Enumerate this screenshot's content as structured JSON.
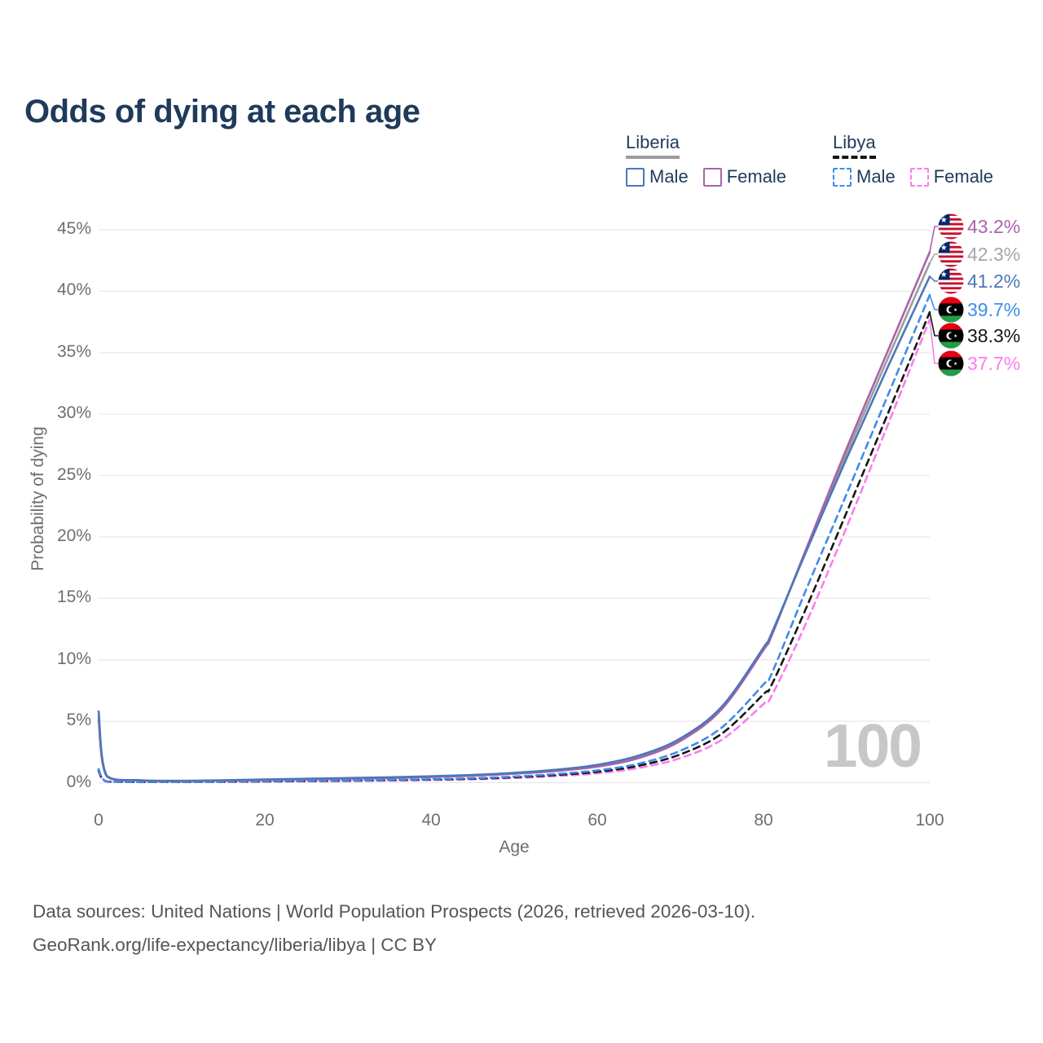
{
  "title": "Odds of dying at each age",
  "watermark": "100",
  "legend": {
    "groups": [
      {
        "title": "Liberia",
        "style": "solid",
        "underline_color": "#9c9c9c",
        "items": [
          {
            "label": "Male",
            "color": "#4a78b8"
          },
          {
            "label": "Female",
            "color": "#aa62a8"
          }
        ]
      },
      {
        "title": "Libya",
        "style": "dashed",
        "underline_color": "#161616",
        "items": [
          {
            "label": "Male",
            "color": "#3f8ceb"
          },
          {
            "label": "Female",
            "color": "#fb7cec"
          }
        ]
      }
    ]
  },
  "footer": {
    "line1": "Data sources: United Nations | World Population Prospects (2026, retrieved 2026-03-10).",
    "line2": "GeoRank.org/life-expectancy/liberia/libya | CC BY"
  },
  "chart_data": {
    "type": "line",
    "title": "Odds of dying at each age",
    "xlabel": "Age",
    "ylabel": "Probability of dying",
    "xlim": [
      0,
      100
    ],
    "ylim": [
      0,
      45
    ],
    "xticks": [
      0,
      20,
      40,
      60,
      80,
      100
    ],
    "yticks": [
      0,
      5,
      10,
      15,
      20,
      25,
      30,
      35,
      40,
      45
    ],
    "ytick_suffix": "%",
    "grid": "horizontal",
    "legend_position": "top-right",
    "ages": [
      0,
      1,
      5,
      10,
      15,
      20,
      25,
      30,
      35,
      40,
      45,
      50,
      55,
      60,
      65,
      70,
      75,
      80,
      81,
      85,
      90,
      95,
      100
    ],
    "series": [
      {
        "id": "liberia-female",
        "country": "Liberia",
        "sex": "Female",
        "color": "#aa62a8",
        "dash": false,
        "values": [
          5.1,
          0.5,
          0.18,
          0.13,
          0.17,
          0.22,
          0.27,
          0.32,
          0.38,
          0.46,
          0.56,
          0.72,
          0.95,
          1.3,
          2.0,
          3.4,
          6.0,
          10.8,
          12.0,
          18.8,
          27.2,
          35.2,
          43.2
        ],
        "end_label": "43.2%"
      },
      {
        "id": "liberia-total",
        "country": "Liberia",
        "sex": "Both",
        "color": "#9c9c9c",
        "dash": false,
        "values": [
          5.45,
          0.52,
          0.19,
          0.14,
          0.18,
          0.24,
          0.3,
          0.35,
          0.41,
          0.49,
          0.6,
          0.76,
          1.0,
          1.37,
          2.1,
          3.5,
          6.1,
          10.9,
          12.1,
          18.7,
          26.8,
          34.6,
          42.3
        ],
        "end_label": "42.3%"
      },
      {
        "id": "liberia-male",
        "country": "Liberia",
        "sex": "Male",
        "color": "#4a78b8",
        "dash": false,
        "values": [
          5.8,
          0.55,
          0.2,
          0.15,
          0.2,
          0.26,
          0.32,
          0.38,
          0.44,
          0.52,
          0.63,
          0.8,
          1.05,
          1.45,
          2.2,
          3.6,
          6.2,
          11.0,
          12.2,
          18.6,
          26.4,
          33.9,
          41.2
        ],
        "end_label": "41.2%"
      },
      {
        "id": "libya-male",
        "country": "Libya",
        "sex": "Male",
        "color": "#3f8ceb",
        "dash": true,
        "values": [
          1.1,
          0.1,
          0.05,
          0.05,
          0.08,
          0.12,
          0.15,
          0.18,
          0.22,
          0.28,
          0.36,
          0.5,
          0.7,
          1.0,
          1.55,
          2.6,
          4.5,
          8.0,
          8.9,
          15.5,
          23.5,
          31.6,
          39.7
        ],
        "end_label": "39.7%"
      },
      {
        "id": "libya-total",
        "country": "Libya",
        "sex": "Both",
        "color": "#161616",
        "dash": true,
        "values": [
          1.0,
          0.09,
          0.05,
          0.05,
          0.07,
          0.1,
          0.13,
          0.16,
          0.2,
          0.25,
          0.32,
          0.44,
          0.62,
          0.88,
          1.38,
          2.3,
          4.0,
          7.2,
          8.0,
          14.0,
          22.0,
          30.1,
          38.3
        ],
        "end_label": "38.3%"
      },
      {
        "id": "libya-female",
        "country": "Libya",
        "sex": "Female",
        "color": "#fb7cec",
        "dash": true,
        "values": [
          0.9,
          0.08,
          0.04,
          0.04,
          0.06,
          0.08,
          0.11,
          0.14,
          0.17,
          0.21,
          0.28,
          0.38,
          0.54,
          0.76,
          1.2,
          2.0,
          3.5,
          6.4,
          7.1,
          12.8,
          20.8,
          29.2,
          37.7
        ],
        "end_label": "37.7%"
      }
    ],
    "end_labels": [
      {
        "value": "43.2%",
        "flag": "liberia",
        "series": "liberia-female",
        "color": "#aa62a8",
        "pct": 43.2
      },
      {
        "value": "42.3%",
        "flag": "liberia",
        "series": "liberia-total",
        "color": "#a6a6a6",
        "pct": 42.3
      },
      {
        "value": "41.2%",
        "flag": "liberia",
        "series": "liberia-male",
        "color": "#4a78b8",
        "pct": 41.2
      },
      {
        "value": "39.7%",
        "flag": "libya",
        "series": "libya-male",
        "color": "#3f8ceb",
        "pct": 39.7
      },
      {
        "value": "38.3%",
        "flag": "libya",
        "series": "libya-total",
        "color": "#161616",
        "pct": 38.3
      },
      {
        "value": "37.7%",
        "flag": "libya",
        "series": "libya-female",
        "color": "#fb7cec",
        "pct": 37.7
      }
    ]
  }
}
